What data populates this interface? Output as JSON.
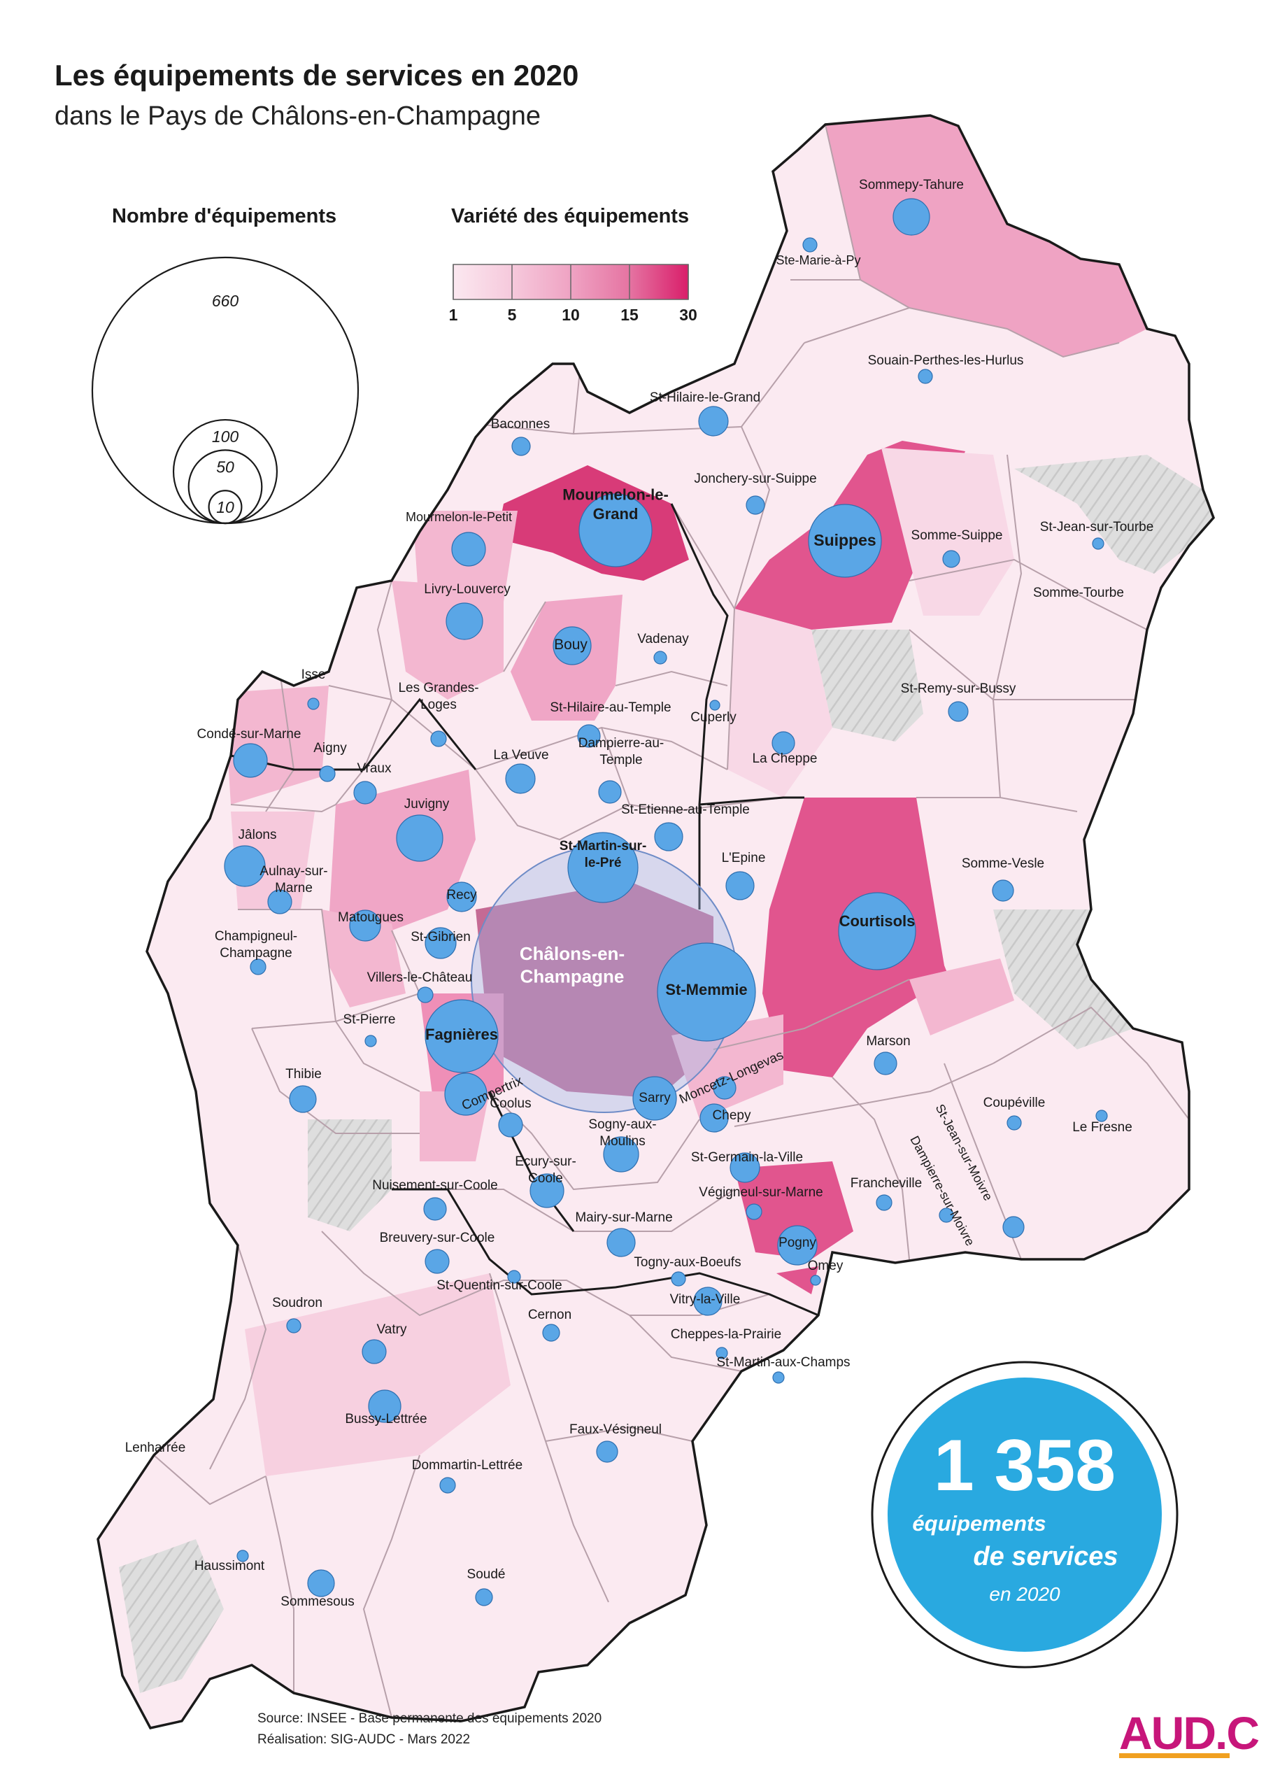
{
  "title": "Les équipements de services en 2020",
  "subtitle": "dans le Pays de Châlons-en-Champagne",
  "legend_size": {
    "heading": "Nombre d'équipements",
    "circles": [
      {
        "label": "660",
        "value": 660
      },
      {
        "label": "100",
        "value": 100
      },
      {
        "label": "50",
        "value": 50
      },
      {
        "label": "10",
        "value": 10
      }
    ]
  },
  "legend_color": {
    "heading": "Variété des équipements",
    "ticks": [
      "1",
      "5",
      "10",
      "15",
      "30"
    ],
    "colors": [
      "#fbe8f0",
      "#f6c9dc",
      "#efa3c3",
      "#e574a2",
      "#d91e6a"
    ]
  },
  "total": {
    "number": "1 358",
    "line1": "équipements",
    "line2": "de services",
    "line3": "en 2020",
    "color": "#29a9e0"
  },
  "source_lines": [
    "Source: INSEE - Base permanente des équipements 2020",
    "Réalisation: SIG-AUDC - Mars 2022"
  ],
  "logo_text": "AUD.C",
  "colors": {
    "bubble": "#5aa6e6",
    "bubble_stroke": "#2e6fb0",
    "outline": "#1a1a1a",
    "commune_border": "#b7a0aa",
    "other_territory": "#d9d9d9"
  },
  "communes": [
    {
      "name": "Sommepy-Tahure"
    },
    {
      "name": "Ste-Marie-à-Py"
    },
    {
      "name": "Souain-Perthes-les-Hurlus"
    },
    {
      "name": "St-Hilaire-le-Grand"
    },
    {
      "name": "Baconnes"
    },
    {
      "name": "Jonchery-sur-Suippe"
    },
    {
      "name": "Mourmelon-le-Grand",
      "lines": [
        "Mourmelon-le-",
        "Grand"
      ]
    },
    {
      "name": "Mourmelon-le-Petit"
    },
    {
      "name": "Suippes"
    },
    {
      "name": "Somme-Suippe"
    },
    {
      "name": "St-Jean-sur-Tourbe"
    },
    {
      "name": "Somme-Tourbe"
    },
    {
      "name": "Livry-Louvercy"
    },
    {
      "name": "Bouy"
    },
    {
      "name": "Vadenay"
    },
    {
      "name": "St-Remy-sur-Bussy"
    },
    {
      "name": "Isse"
    },
    {
      "name": "Les Grandes-Loges",
      "lines": [
        "Les Grandes-",
        "Loges"
      ]
    },
    {
      "name": "St-Hilaire-au-Temple"
    },
    {
      "name": "Cuperly"
    },
    {
      "name": "Condé-sur-Marne"
    },
    {
      "name": "Aigny"
    },
    {
      "name": "Vraux"
    },
    {
      "name": "La Veuve"
    },
    {
      "name": "Dampierre-au-Temple",
      "lines": [
        "Dampierre-au-",
        "Temple"
      ]
    },
    {
      "name": "La Cheppe"
    },
    {
      "name": "Juvigny"
    },
    {
      "name": "St-Etienne-au-Temple"
    },
    {
      "name": "Jâlons"
    },
    {
      "name": "St-Martin-sur-le-Pré",
      "lines": [
        "St-Martin-sur-",
        "le-Pré"
      ]
    },
    {
      "name": "L'Epine"
    },
    {
      "name": "Somme-Vesle"
    },
    {
      "name": "Aulnay-sur-Marne",
      "lines": [
        "Aulnay-sur-",
        "Marne"
      ]
    },
    {
      "name": "Recy"
    },
    {
      "name": "Matougues"
    },
    {
      "name": "Courtisols"
    },
    {
      "name": "St-Gibrien"
    },
    {
      "name": "Champigneul-Champagne",
      "lines": [
        "Champigneul-",
        "Champagne"
      ]
    },
    {
      "name": "Châlons-en-Champagne",
      "lines": [
        "Châlons-en-",
        "Champagne"
      ]
    },
    {
      "name": "St-Memmie"
    },
    {
      "name": "Villers-le-Château"
    },
    {
      "name": "St-Pierre"
    },
    {
      "name": "Fagnières"
    },
    {
      "name": "Marson"
    },
    {
      "name": "Moncetz-Longevas"
    },
    {
      "name": "Compertrix"
    },
    {
      "name": "Thibie"
    },
    {
      "name": "Sarry"
    },
    {
      "name": "Coolus"
    },
    {
      "name": "Chepy"
    },
    {
      "name": "Coupéville"
    },
    {
      "name": "St-Jean-sur-Moivre"
    },
    {
      "name": "Le Fresne"
    },
    {
      "name": "Sogny-aux-Moulins",
      "lines": [
        "Sogny-aux-",
        "Moulins"
      ]
    },
    {
      "name": "Ecury-sur-Coole",
      "lines": [
        "Ecury-sur-",
        "Coole"
      ]
    },
    {
      "name": "St-Germain-la-Ville"
    },
    {
      "name": "Dampierre-sur-Moivre"
    },
    {
      "name": "Francheville"
    },
    {
      "name": "Nuisement-sur-Coole"
    },
    {
      "name": "Végigneul-sur-Marne"
    },
    {
      "name": "Mairy-sur-Marne"
    },
    {
      "name": "Pogny"
    },
    {
      "name": "Breuvery-sur-Coole"
    },
    {
      "name": "Togny-aux-Boeufs"
    },
    {
      "name": "Omey"
    },
    {
      "name": "St-Quentin-sur-Coole"
    },
    {
      "name": "Vitry-la-Ville"
    },
    {
      "name": "Soudron"
    },
    {
      "name": "Cernon"
    },
    {
      "name": "Cheppes-la-Prairie"
    },
    {
      "name": "Vatry"
    },
    {
      "name": "St-Martin-aux-Champs"
    },
    {
      "name": "Bussy-Lettrée"
    },
    {
      "name": "Faux-Vésigneul"
    },
    {
      "name": "Lenharrée"
    },
    {
      "name": "Dommartin-Lettrée"
    },
    {
      "name": "Haussimont"
    },
    {
      "name": "Soudé"
    },
    {
      "name": "Sommesous"
    }
  ]
}
